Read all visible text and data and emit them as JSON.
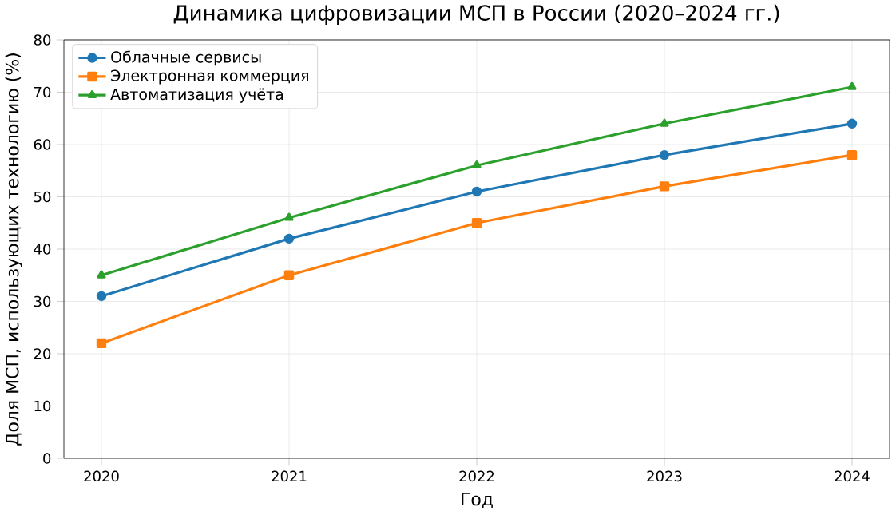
{
  "chart_data": {
    "type": "line",
    "title": "Динамика цифровизации МСП в России (2020–2024 гг.)",
    "xlabel": "Год",
    "ylabel": "Доля МСП, использующих технологию (%)",
    "x": [
      2020,
      2021,
      2022,
      2023,
      2024
    ],
    "xlim": [
      2019.8,
      2024.2
    ],
    "xticks": [
      2020,
      2021,
      2022,
      2023,
      2024
    ],
    "ylim": [
      0,
      80
    ],
    "yticks": [
      0,
      10,
      20,
      30,
      40,
      50,
      60,
      70,
      80
    ],
    "grid": true,
    "legend": "top left",
    "line_style": "solid",
    "series": [
      {
        "name": "Облачные сервисы",
        "color": "#1f77b4",
        "marker": "circle",
        "values": [
          31,
          42,
          51,
          58,
          64
        ]
      },
      {
        "name": "Электронная коммерция",
        "color": "#ff7f0e",
        "marker": "square",
        "values": [
          22,
          35,
          45,
          52,
          58
        ]
      },
      {
        "name": "Автоматизация учёта",
        "color": "#2ca02c",
        "marker": "triangle",
        "values": [
          35,
          46,
          56,
          64,
          71
        ]
      }
    ]
  }
}
